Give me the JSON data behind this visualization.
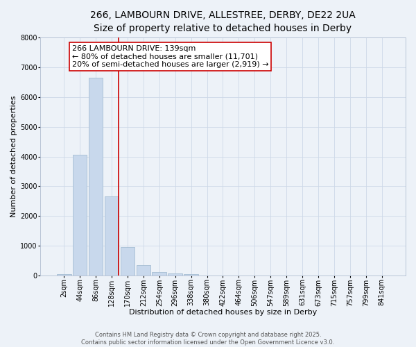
{
  "title_line1": "266, LAMBOURN DRIVE, ALLESTREE, DERBY, DE22 2UA",
  "title_line2": "Size of property relative to detached houses in Derby",
  "xlabel": "Distribution of detached houses by size in Derby",
  "ylabel": "Number of detached properties",
  "categories": [
    "2sqm",
    "44sqm",
    "86sqm",
    "128sqm",
    "170sqm",
    "212sqm",
    "254sqm",
    "296sqm",
    "338sqm",
    "380sqm",
    "422sqm",
    "464sqm",
    "506sqm",
    "547sqm",
    "589sqm",
    "631sqm",
    "673sqm",
    "715sqm",
    "757sqm",
    "799sqm",
    "841sqm"
  ],
  "values": [
    50,
    4050,
    6650,
    2650,
    970,
    350,
    130,
    70,
    50,
    0,
    0,
    0,
    0,
    0,
    0,
    0,
    0,
    0,
    0,
    0,
    0
  ],
  "bar_color": "#c8d8ec",
  "bar_edgecolor": "#9ab5cc",
  "bar_linewidth": 0.5,
  "vline_x": 3.42,
  "vline_color": "#cc0000",
  "vline_linewidth": 1.2,
  "ylim": [
    0,
    8000
  ],
  "yticks": [
    0,
    1000,
    2000,
    3000,
    4000,
    5000,
    6000,
    7000,
    8000
  ],
  "annotation_text": "266 LAMBOURN DRIVE: 139sqm\n← 80% of detached houses are smaller (11,701)\n20% of semi-detached houses are larger (2,919) →",
  "annotation_box_color": "#ffffff",
  "annotation_box_edgecolor": "#cc0000",
  "grid_color": "#cdd8e8",
  "background_color": "#edf2f8",
  "plot_bg_color": "#edf2f8",
  "footer_line1": "Contains HM Land Registry data © Crown copyright and database right 2025.",
  "footer_line2": "Contains public sector information licensed under the Open Government Licence v3.0.",
  "title_fontsize": 10,
  "subtitle_fontsize": 9,
  "axis_label_fontsize": 8,
  "tick_fontsize": 7,
  "annotation_fontsize": 8,
  "footer_fontsize": 6
}
